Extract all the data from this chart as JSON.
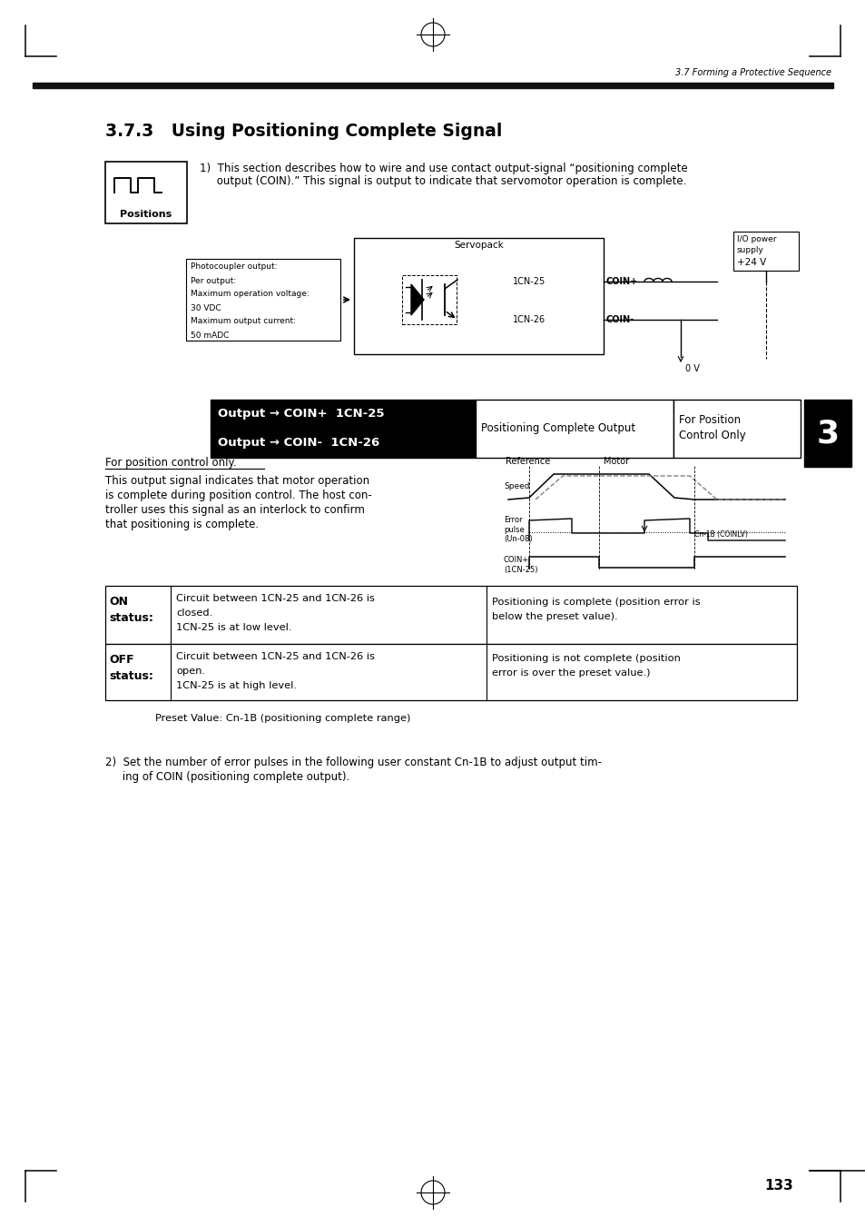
{
  "page_header_right": "3.7 Forming a Protective Sequence",
  "section_title": "3.7.3   Using Positioning Complete Signal",
  "section_number": "3",
  "bg_color": "#ffffff",
  "text_color": "#000000",
  "header_bar_color": "#111111",
  "output_row1_text": "Output → COIN+  1CN-25",
  "output_row2_text": "Output → COIN-  1CN-26",
  "output_label": "Positioning Complete Output",
  "for_position_label": "For Position\nControl Only",
  "positions_label": "Positions",
  "servopack_label": "Servopack",
  "photo_text_lines": [
    "Photocoupler output:",
    "Per output:",
    "Maximum operation voltage:",
    "30 VDC",
    "Maximum output current:",
    "50 mADC"
  ],
  "cn25_label": "1CN-25",
  "cn26_label": "1CN-26",
  "coin_plus_label": "COIN+",
  "coin_minus_label": "COIN-",
  "zero_v_label": "0 V",
  "io_power_lines": [
    "I/O power",
    "supply",
    "+24 V"
  ],
  "for_position_text": "For position control only.",
  "body_text_lines": [
    "This output signal indicates that motor operation",
    "is complete during position control. The host con-",
    "troller uses this signal as an interlock to confirm",
    "that positioning is complete."
  ],
  "reference_label": "Reference",
  "motor_label": "Motor",
  "speed_label": "Speed",
  "error_pulse_label": "Error\npulse\n(Un-08)",
  "cn1b_label": "Cn-1B (COINLV)",
  "coin_plus_cn25_label": "COIN+\n(1CN-25)",
  "on_label": "ON",
  "status_label": "status:",
  "off_label": "OFF",
  "on_text1_lines": [
    "Circuit between 1CN-25 and 1CN-26 is",
    "closed.",
    "1CN-25 is at low level."
  ],
  "on_text2_lines": [
    "Positioning is complete (position error is",
    "below the preset value)."
  ],
  "off_text1_lines": [
    "Circuit between 1CN-25 and 1CN-26 is",
    "open.",
    "1CN-25 is at high level."
  ],
  "off_text2_lines": [
    "Positioning is not complete (position",
    "error is over the preset value.)"
  ],
  "preset_text": "Preset Value: Cn-1B (positioning complete range)",
  "item1_lines": [
    "1)  This section describes how to wire and use contact output-signal “positioning complete",
    "     output (COIN).” This signal is output to indicate that servomotor operation is complete."
  ],
  "item2_lines": [
    "2)  Set the number of error pulses in the following user constant Cn-1B to adjust output tim-",
    "     ing of COIN (positioning complete output)."
  ],
  "page_number": "133"
}
